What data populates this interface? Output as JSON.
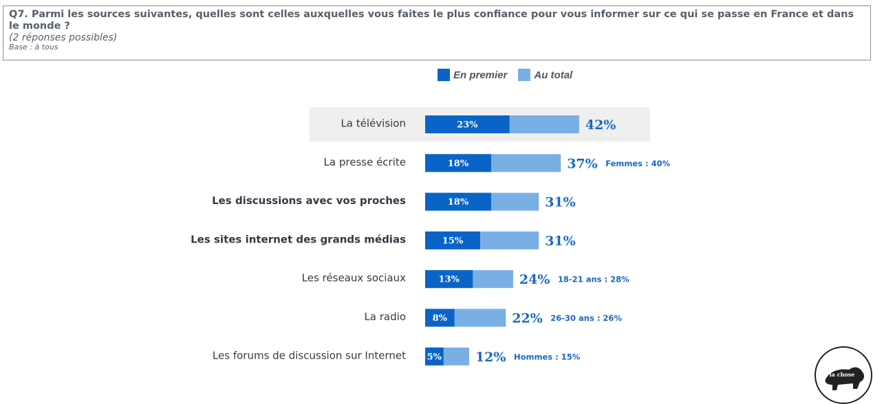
{
  "question": {
    "title": "Q7. Parmi les sources suivantes, quelles sont celles auxquelles vous faites le plus confiance pour vous informer sur ce qui se passe en France et dans le monde ?",
    "subtitle": "(2 réponses possibles)",
    "base": "Base : à tous"
  },
  "colors": {
    "first": "#0a64c8",
    "total": "#7aafe6",
    "highlight_bg": "#efefef"
  },
  "chart_data": {
    "type": "bar",
    "orientation": "horizontal",
    "stacked_overlay": true,
    "legend": {
      "placement": "top-center",
      "entries": [
        "En premier",
        "Au total"
      ]
    },
    "categories": [
      "La télévision",
      "La presse écrite",
      "Les discussions avec vos proches",
      "Les sites internet des grands médias",
      "Les réseaux sociaux",
      "La radio",
      "Les forums de discussion sur Internet"
    ],
    "bold_categories": [
      false,
      false,
      true,
      true,
      false,
      false,
      false
    ],
    "highlighted_category": "La télévision",
    "series": [
      {
        "name": "En premier",
        "values": [
          23,
          18,
          18,
          15,
          13,
          8,
          5
        ]
      },
      {
        "name": "Au total",
        "values": [
          42,
          37,
          31,
          31,
          24,
          22,
          12
        ]
      }
    ],
    "value_labels_first": [
      "23%",
      "18%",
      "18%",
      "15%",
      "13%",
      "8%",
      "5%"
    ],
    "value_labels_total": [
      "42%",
      "37%",
      "31%",
      "31%",
      "24%",
      "22%",
      "12%"
    ],
    "notes": [
      "",
      "Femmes : 40%",
      "",
      "",
      "18-21 ans : 28%",
      "26-30 ans : 26%",
      "Hommes : 15%"
    ],
    "unit": "%"
  },
  "logo": {
    "text": "la chose"
  }
}
